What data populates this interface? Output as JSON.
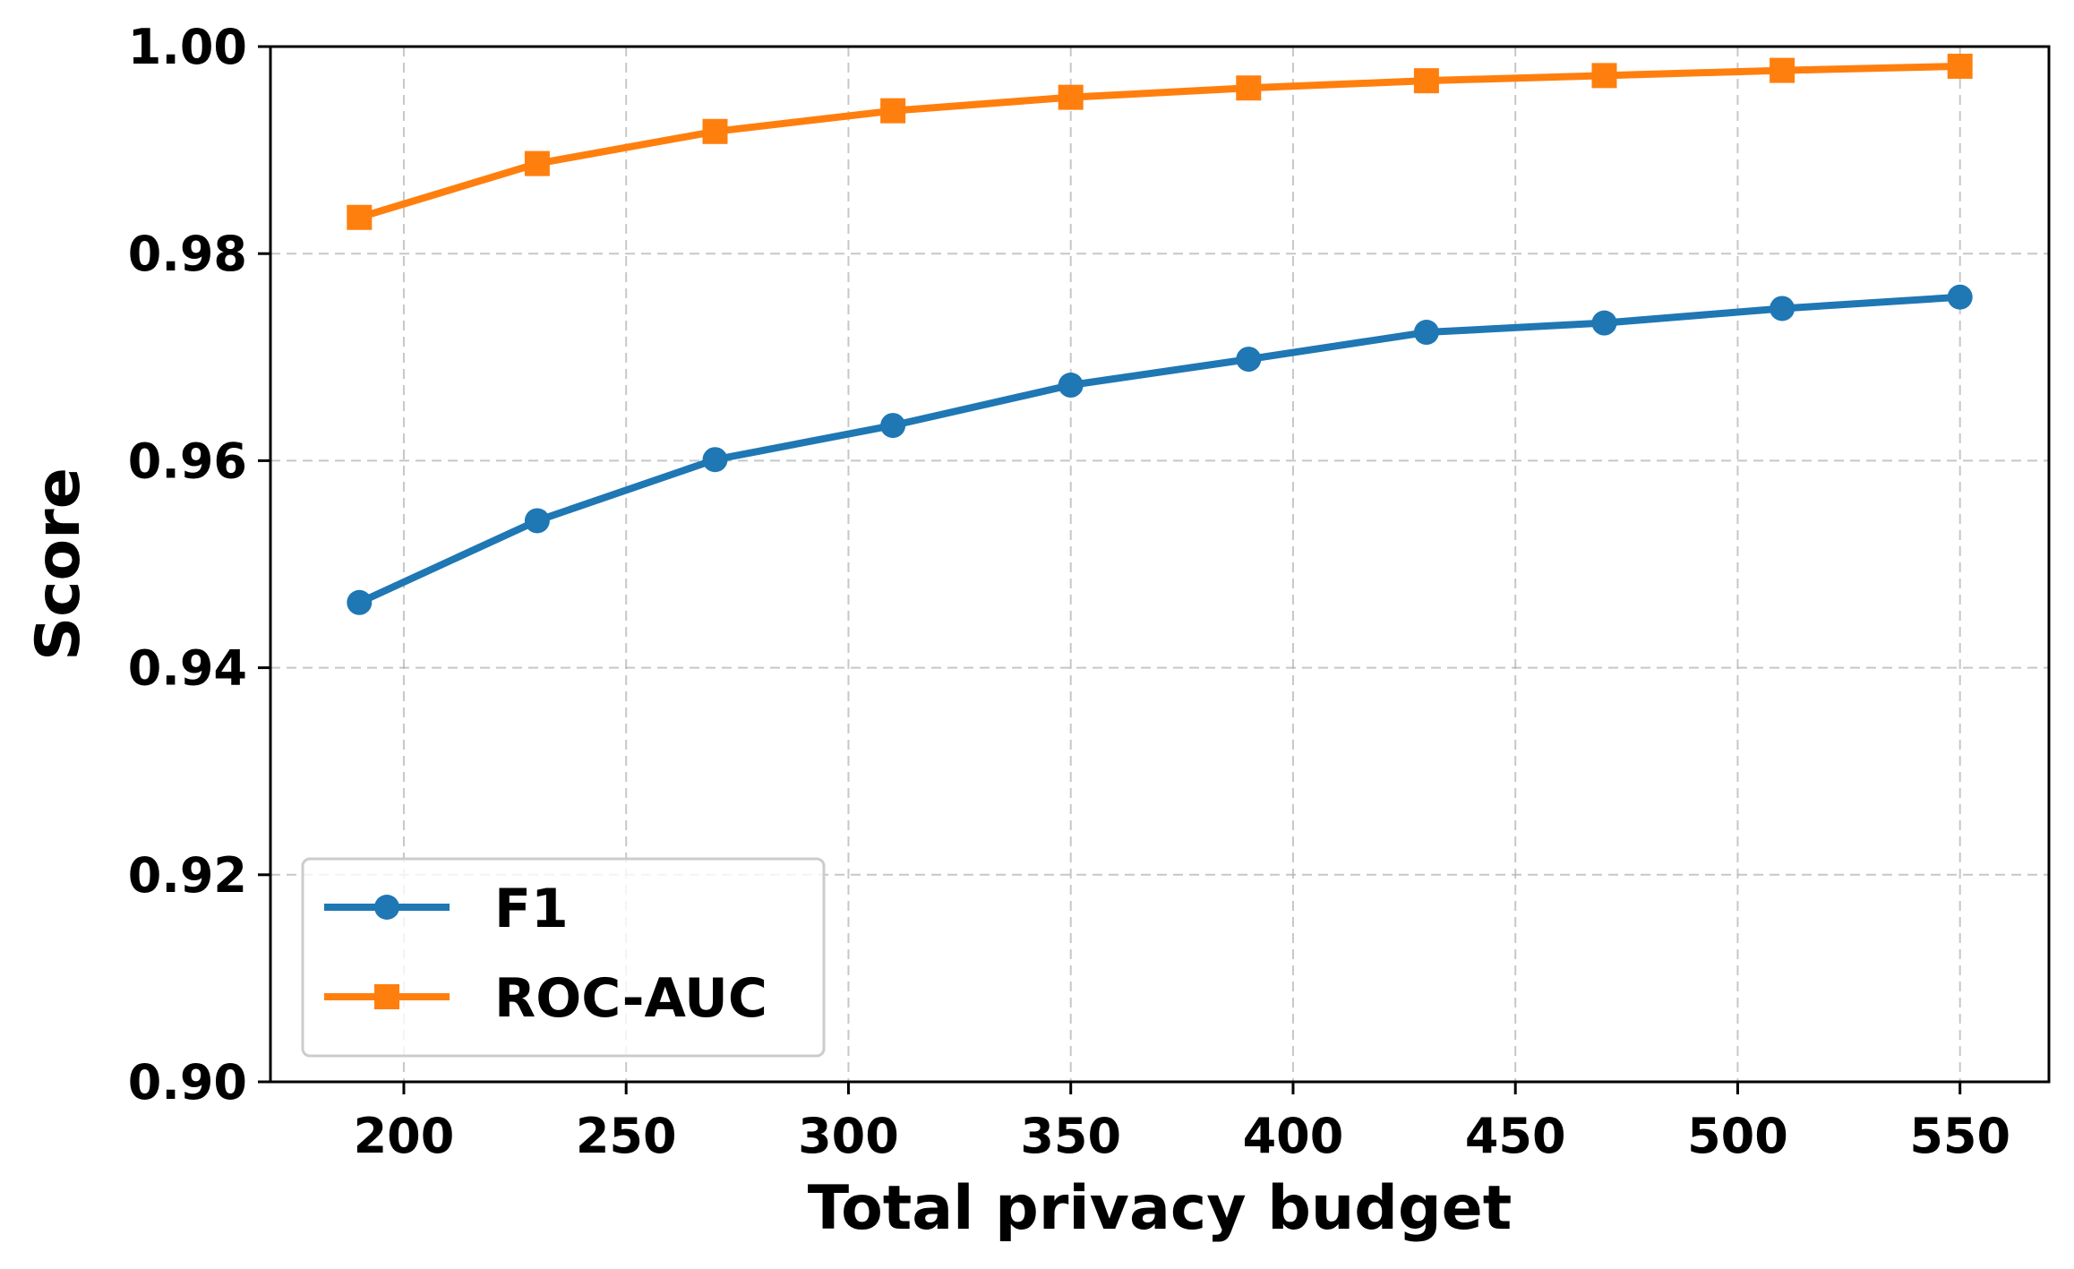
{
  "chart_data": {
    "type": "line",
    "title": "",
    "xlabel": "Total privacy budget",
    "ylabel": "Score",
    "x": [
      190,
      230,
      270,
      310,
      350,
      390,
      430,
      470,
      510,
      550
    ],
    "xlim": [
      170,
      570
    ],
    "ylim": [
      0.9,
      1.0
    ],
    "xticks": [
      200,
      250,
      300,
      350,
      400,
      450,
      500,
      550
    ],
    "xtick_labels": [
      "200",
      "250",
      "300",
      "350",
      "400",
      "450",
      "500",
      "550"
    ],
    "yticks": [
      0.9,
      0.92,
      0.94,
      0.96,
      0.98,
      1.0
    ],
    "ytick_labels": [
      "0.90",
      "0.92",
      "0.94",
      "0.96",
      "0.98",
      "1.00"
    ],
    "grid": true,
    "legend_position": "lower-left",
    "series": [
      {
        "name": "F1",
        "color": "#1f77b4",
        "marker": "circle",
        "values": [
          0.9463,
          0.9542,
          0.9601,
          0.9634,
          0.9673,
          0.9698,
          0.9724,
          0.9733,
          0.9747,
          0.9758
        ]
      },
      {
        "name": "ROC-AUC",
        "color": "#ff7f0e",
        "marker": "square",
        "values": [
          0.9835,
          0.9887,
          0.9918,
          0.9938,
          0.9951,
          0.996,
          0.9967,
          0.9972,
          0.9977,
          0.9981
        ]
      }
    ]
  }
}
